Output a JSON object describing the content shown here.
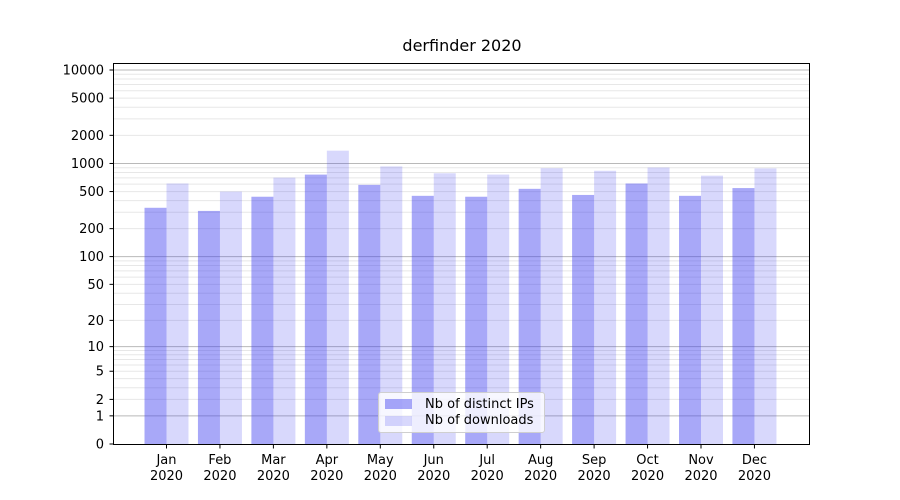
{
  "title": "derfinder 2020",
  "colors": {
    "bar_distinct_ips": "rgba(62,62,240,0.45)",
    "bar_downloads": "rgba(62,62,240,0.2)",
    "grid_major": "#b9b9b9",
    "grid_minor": "#e7e7e7",
    "axis": "#000000",
    "background": "#ffffff",
    "legend_border": "#cfcfcf"
  },
  "chart_data": {
    "type": "bar",
    "title": "derfinder 2020",
    "categories": [
      "Jan",
      "Feb",
      "Mar",
      "Apr",
      "May",
      "Jun",
      "Jul",
      "Aug",
      "Sep",
      "Oct",
      "Nov",
      "Dec"
    ],
    "x_tick_line2": "2020",
    "series": [
      {
        "name": "Nb of distinct IPs",
        "color": "rgba(62,62,240,0.45)",
        "values": [
          335,
          310,
          440,
          760,
          590,
          450,
          440,
          535,
          460,
          610,
          450,
          545
        ]
      },
      {
        "name": "Nb of downloads",
        "color": "rgba(62,62,240,0.2)",
        "values": [
          610,
          500,
          705,
          1370,
          930,
          785,
          760,
          890,
          835,
          905,
          740,
          885
        ]
      }
    ],
    "yscale": "log1p",
    "y_ticks": [
      0,
      1,
      2,
      5,
      10,
      20,
      50,
      100,
      200,
      500,
      1000,
      2000,
      5000,
      10000
    ],
    "ylim": [
      0,
      14000
    ],
    "grid": "horizontal log gridlines (major at powers of 10, minor at 2-9 steps)",
    "legend_position": "lower center"
  }
}
